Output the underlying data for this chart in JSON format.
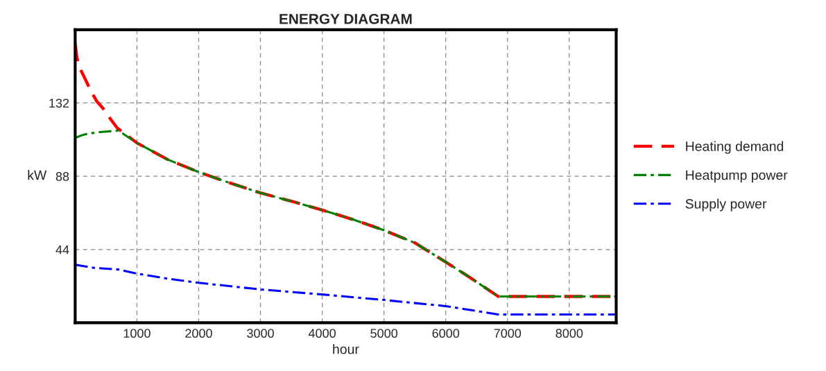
{
  "chart_data": {
    "type": "line",
    "title": "ENERGY DIAGRAM",
    "xlabel": "hour",
    "ylabel": "kW",
    "xlim": [
      0,
      8760
    ],
    "xticks": [
      1000,
      2000,
      3000,
      4000,
      5000,
      6000,
      7000,
      8000
    ],
    "ylim": [
      0,
      176
    ],
    "yticks": [
      44,
      88,
      132
    ],
    "grid": true,
    "legend": "right",
    "marker": "none",
    "series": [
      {
        "name": "Heating demand",
        "color": "#ff0000",
        "line_style": "dashed",
        "x": [
          0,
          25,
          60,
          135,
          250,
          350,
          470,
          580,
          680,
          1000,
          1500,
          2000,
          2500,
          3000,
          3500,
          4000,
          4500,
          5000,
          5500,
          6000,
          6400,
          6850,
          8760
        ],
        "values": [
          168,
          160,
          154,
          148.5,
          139.5,
          133,
          128,
          122,
          117,
          108,
          98,
          90.5,
          84,
          78,
          73,
          67.7,
          62,
          55.6,
          48,
          36.5,
          27,
          15.8,
          15.8
        ]
      },
      {
        "name": "Heatpump power",
        "color": "#008000",
        "line_style": "dashdot",
        "x": [
          0,
          100,
          200,
          400,
          700,
          1000,
          1500,
          2000,
          2500,
          3000,
          3500,
          4000,
          4500,
          5000,
          5500,
          6000,
          6400,
          6850,
          8760
        ],
        "values": [
          111,
          112.5,
          113.5,
          114.5,
          115.4,
          108,
          98,
          90.5,
          84,
          78,
          73,
          67.7,
          62,
          55.6,
          48,
          36.5,
          27,
          15.8,
          15.8
        ]
      },
      {
        "name": "Supply power",
        "color": "#0000ff",
        "line_style": "dashdot",
        "x": [
          0,
          300,
          700,
          1000,
          1500,
          2000,
          3000,
          4000,
          5000,
          6000,
          6850,
          8760
        ],
        "values": [
          34.9,
          33,
          32,
          29.5,
          26.5,
          24,
          20,
          17,
          13.7,
          10,
          5,
          5
        ]
      }
    ]
  }
}
